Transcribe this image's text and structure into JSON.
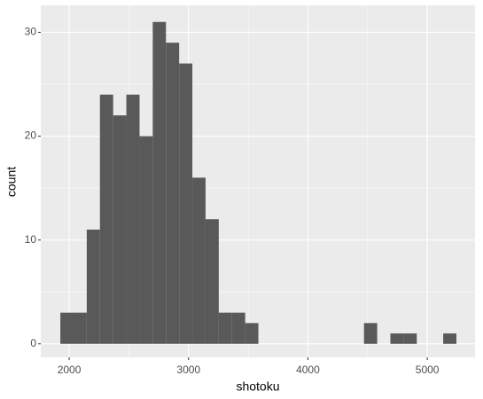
{
  "chart_data": {
    "type": "histogram",
    "x_label": "shotoku",
    "y_label": "count",
    "bins": [
      1926,
      2036.6,
      2147.2,
      2257.8,
      2368.4,
      2479,
      2589.6,
      2700.2,
      2810.8,
      2921.4,
      3032,
      3142.6,
      3253.2,
      3363.8,
      3474.4,
      3585,
      3695.6,
      3806.2,
      3916.8,
      4027.4,
      4138,
      4248.6,
      4359.2,
      4469.8,
      4580.4,
      4691,
      4801.6,
      4912.2,
      5022.8,
      5133.4,
      5244
    ],
    "values": [
      3,
      3,
      11,
      24,
      22,
      24,
      20,
      31,
      29,
      27,
      16,
      12,
      3,
      3,
      2,
      0,
      0,
      0,
      0,
      0,
      0,
      0,
      0,
      2,
      0,
      1,
      1,
      0,
      0,
      1
    ],
    "color": "#595959",
    "xlim": [
      1762,
      5400
    ],
    "xticks": [
      2000,
      3000,
      4000,
      5000
    ],
    "ylim": [
      -1.3,
      32.6
    ],
    "yticks": [
      0,
      10,
      20,
      30
    ],
    "grid": true
  }
}
